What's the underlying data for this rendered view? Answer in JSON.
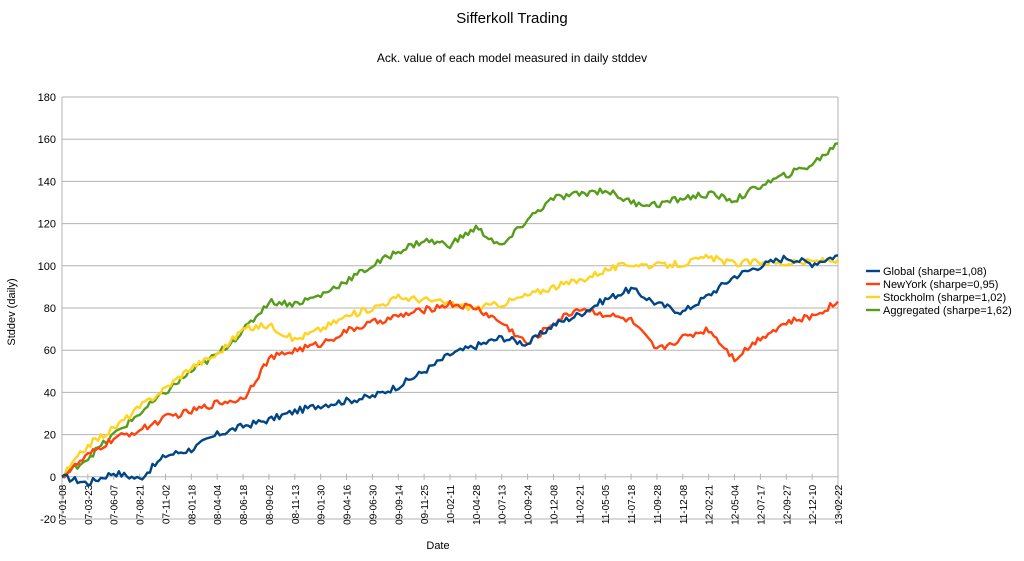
{
  "chart_data": {
    "type": "line",
    "title": "Sifferkoll Trading",
    "subtitle": "Ack. value of each model measured in daily stddev",
    "xlabel": "Date",
    "ylabel": "Stddev (daily)",
    "ylim": [
      -20,
      180
    ],
    "yticks": [
      "-20",
      "0",
      "20",
      "40",
      "60",
      "80",
      "100",
      "120",
      "140",
      "160",
      "180"
    ],
    "grid": "horizontal",
    "legend_position": "right",
    "categories": [
      "07-01-08",
      "07-03-23",
      "07-06-07",
      "07-08-21",
      "07-11-02",
      "08-01-18",
      "08-04-04",
      "08-06-18",
      "08-09-02",
      "08-11-13",
      "09-01-30",
      "09-04-16",
      "09-06-30",
      "09-09-14",
      "09-11-25",
      "10-02-11",
      "10-04-28",
      "10-07-13",
      "10-09-24",
      "10-12-08",
      "11-02-21",
      "11-05-05",
      "11-07-18",
      "11-09-28",
      "11-12-08",
      "12-02-21",
      "12-05-04",
      "12-07-17",
      "12-09-27",
      "12-12-10",
      "13-02-22"
    ],
    "series": [
      {
        "name": "Global (sharpe=1,08)",
        "color": "#004586",
        "values": [
          0,
          -3,
          2,
          -1,
          10,
          13,
          20,
          24,
          27,
          31,
          34,
          36,
          38,
          43,
          50,
          58,
          62,
          66,
          63,
          72,
          77,
          84,
          89,
          82,
          78,
          86,
          95,
          100,
          104,
          101,
          105
        ]
      },
      {
        "name": "NewYork (sharpe=0,95)",
        "color": "#ff420e",
        "values": [
          0,
          10,
          18,
          22,
          28,
          31,
          35,
          37,
          56,
          60,
          63,
          69,
          73,
          76,
          79,
          82,
          80,
          73,
          63,
          73,
          80,
          77,
          74,
          60,
          66,
          70,
          56,
          66,
          73,
          76,
          83
        ]
      },
      {
        "name": "Stockholm (sharpe=1,02)",
        "color": "#ffd320",
        "values": [
          0,
          15,
          23,
          33,
          42,
          52,
          58,
          70,
          72,
          65,
          70,
          76,
          80,
          85,
          84,
          82,
          80,
          82,
          86,
          90,
          93,
          98,
          101,
          100,
          101,
          104,
          101,
          102,
          101,
          102,
          103
        ]
      },
      {
        "name": "Aggregated (sharpe=1,62)",
        "color": "#579d1c",
        "values": [
          0,
          9,
          20,
          30,
          40,
          50,
          58,
          69,
          83,
          82,
          86,
          93,
          100,
          107,
          112,
          110,
          118,
          109,
          122,
          132,
          134,
          136,
          130,
          129,
          132,
          134,
          131,
          138,
          143,
          148,
          158
        ]
      }
    ]
  }
}
